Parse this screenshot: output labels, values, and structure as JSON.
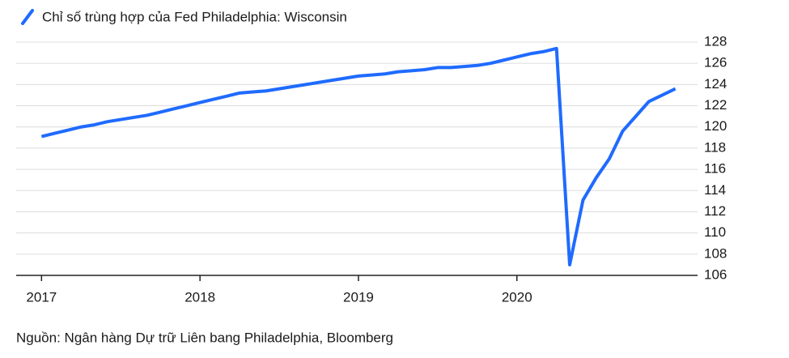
{
  "chart_data": {
    "type": "line",
    "title": "Chỉ số trùng hợp của Fed Philadelphia: Wisconsin",
    "source": "Nguồn: Ngân hàng Dự trữ Liên bang Philadelphia, Bloomberg",
    "x": [
      2017,
      2017.083,
      2017.167,
      2017.25,
      2017.333,
      2017.417,
      2017.5,
      2017.583,
      2017.667,
      2017.75,
      2017.833,
      2017.917,
      2018,
      2018.083,
      2018.167,
      2018.25,
      2018.333,
      2018.417,
      2018.5,
      2018.583,
      2018.667,
      2018.75,
      2018.833,
      2018.917,
      2019,
      2019.083,
      2019.167,
      2019.25,
      2019.333,
      2019.417,
      2019.5,
      2019.583,
      2019.667,
      2019.75,
      2019.833,
      2019.917,
      2020,
      2020.083,
      2020.167,
      2020.25,
      2020.333,
      2020.417,
      2020.5,
      2020.583,
      2020.667,
      2020.75,
      2020.833,
      2020.917,
      2021
    ],
    "series": [
      {
        "name": "Chỉ số trùng hợp của Fed Philadelphia: Wisconsin",
        "color": "#1f6bff",
        "values": [
          119.1,
          119.4,
          119.7,
          120.0,
          120.2,
          120.5,
          120.7,
          120.9,
          121.1,
          121.4,
          121.7,
          122.0,
          122.3,
          122.6,
          122.9,
          123.2,
          123.3,
          123.4,
          123.6,
          123.8,
          124.0,
          124.2,
          124.4,
          124.6,
          124.8,
          124.9,
          125.0,
          125.2,
          125.3,
          125.4,
          125.6,
          125.6,
          125.7,
          125.8,
          126.0,
          126.3,
          126.6,
          126.9,
          127.1,
          127.4,
          107.0,
          113.1,
          115.2,
          117.0,
          119.6,
          121.0,
          122.4,
          123.0,
          123.6
        ]
      }
    ],
    "xlim": [
      2016.84,
      2021.14
    ],
    "xticks": [
      2017,
      2018,
      2019,
      2020
    ],
    "ylim": [
      106,
      128
    ],
    "yticks": [
      106,
      108,
      110,
      112,
      114,
      116,
      118,
      120,
      122,
      124,
      126,
      128
    ],
    "grid": true
  }
}
